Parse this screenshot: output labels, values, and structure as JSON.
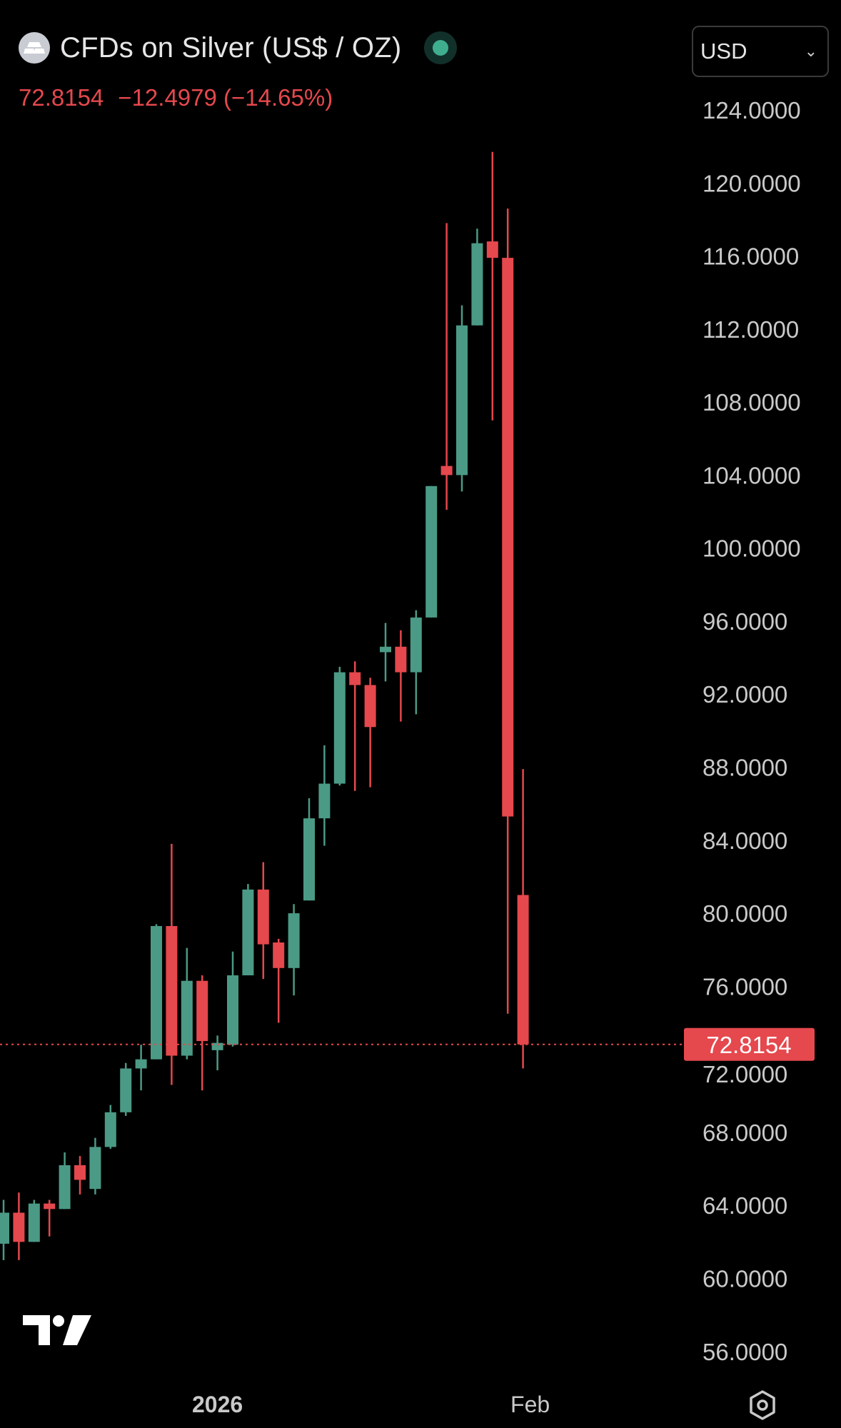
{
  "header": {
    "title": "CFDs on Silver (US$ / OZ)",
    "last": "72.8154",
    "change": "−12.4979",
    "change_pct": "(−14.65%)",
    "currency": "USD"
  },
  "colors": {
    "up": "#4b9a85",
    "down": "#e5484d",
    "text": "#c9c9c9",
    "bg": "#000000"
  },
  "chart_data": {
    "type": "candlestick",
    "title": "CFDs on Silver (US$ / OZ)",
    "ylim": [
      54,
      126
    ],
    "y_ticks": [
      124,
      120,
      116,
      112,
      108,
      104,
      100,
      96,
      92,
      88,
      84,
      80,
      76,
      72,
      68,
      64,
      60,
      56
    ],
    "y_tick_labels": [
      "124.0000",
      "120.0000",
      "116.0000",
      "112.0000",
      "108.0000",
      "104.0000",
      "100.0000",
      "96.0000",
      "92.0000",
      "88.0000",
      "84.0000",
      "80.0000",
      "76.0000",
      "72.0000",
      "68.0000",
      "64.0000",
      "60.0000",
      "56.0000"
    ],
    "x_labels": [
      {
        "index": 14,
        "label": "2026"
      },
      {
        "index": 34,
        "label": "Feb"
      }
    ],
    "last_price": 72.8154,
    "last_price_label": "72.8154",
    "candles": [
      {
        "o": 61.9,
        "h": 64.3,
        "l": 61.0,
        "c": 63.6
      },
      {
        "o": 63.6,
        "h": 64.7,
        "l": 61.0,
        "c": 62.0
      },
      {
        "o": 62.0,
        "h": 64.3,
        "l": 62.0,
        "c": 64.1
      },
      {
        "o": 64.1,
        "h": 64.3,
        "l": 62.3,
        "c": 63.8
      },
      {
        "o": 63.8,
        "h": 66.9,
        "l": 63.8,
        "c": 66.2
      },
      {
        "o": 66.2,
        "h": 66.7,
        "l": 64.6,
        "c": 65.4
      },
      {
        "o": 64.9,
        "h": 67.7,
        "l": 64.6,
        "c": 67.2
      },
      {
        "o": 67.2,
        "h": 69.5,
        "l": 67.1,
        "c": 69.1
      },
      {
        "o": 69.1,
        "h": 71.8,
        "l": 68.9,
        "c": 71.5
      },
      {
        "o": 71.5,
        "h": 72.8,
        "l": 70.3,
        "c": 72.0
      },
      {
        "o": 72.0,
        "h": 79.4,
        "l": 72.0,
        "c": 79.3
      },
      {
        "o": 79.3,
        "h": 83.8,
        "l": 70.6,
        "c": 72.2
      },
      {
        "o": 72.2,
        "h": 78.1,
        "l": 72.0,
        "c": 76.3
      },
      {
        "o": 76.3,
        "h": 76.6,
        "l": 70.3,
        "c": 73.0
      },
      {
        "o": 72.5,
        "h": 73.3,
        "l": 71.4,
        "c": 72.9
      },
      {
        "o": 72.8,
        "h": 77.9,
        "l": 72.7,
        "c": 76.6
      },
      {
        "o": 76.6,
        "h": 81.6,
        "l": 76.6,
        "c": 81.3
      },
      {
        "o": 81.3,
        "h": 82.8,
        "l": 76.4,
        "c": 78.3
      },
      {
        "o": 78.4,
        "h": 78.6,
        "l": 74.0,
        "c": 77.0
      },
      {
        "o": 77.0,
        "h": 80.5,
        "l": 75.5,
        "c": 80.0
      },
      {
        "o": 80.7,
        "h": 86.3,
        "l": 80.7,
        "c": 85.2
      },
      {
        "o": 85.2,
        "h": 89.2,
        "l": 83.7,
        "c": 87.1
      },
      {
        "o": 87.1,
        "h": 93.5,
        "l": 87.0,
        "c": 93.2
      },
      {
        "o": 93.2,
        "h": 93.8,
        "l": 86.7,
        "c": 92.5
      },
      {
        "o": 92.5,
        "h": 92.9,
        "l": 86.9,
        "c": 90.2
      },
      {
        "o": 94.3,
        "h": 95.9,
        "l": 92.7,
        "c": 94.6
      },
      {
        "o": 94.6,
        "h": 95.5,
        "l": 90.5,
        "c": 93.2
      },
      {
        "o": 93.2,
        "h": 96.6,
        "l": 90.9,
        "c": 96.2
      },
      {
        "o": 96.2,
        "h": 103.4,
        "l": 96.2,
        "c": 103.4
      },
      {
        "o": 104.5,
        "h": 117.8,
        "l": 102.1,
        "c": 104.0
      },
      {
        "o": 104.0,
        "h": 113.3,
        "l": 103.1,
        "c": 112.2
      },
      {
        "o": 112.2,
        "h": 117.5,
        "l": 112.2,
        "c": 116.7
      },
      {
        "o": 116.8,
        "h": 121.7,
        "l": 107.0,
        "c": 115.9
      },
      {
        "o": 115.9,
        "h": 118.6,
        "l": 74.5,
        "c": 85.3
      },
      {
        "o": 81.0,
        "h": 87.9,
        "l": 71.5,
        "c": 72.8154
      }
    ]
  }
}
